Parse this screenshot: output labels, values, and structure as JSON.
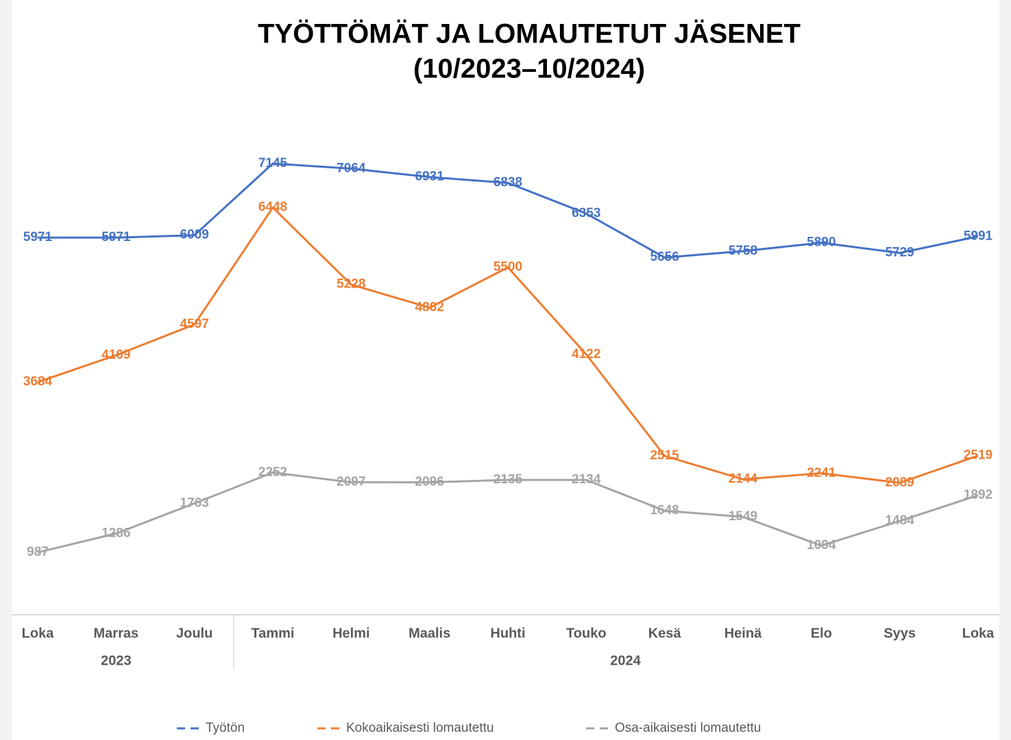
{
  "chart_data": {
    "type": "line",
    "title": [
      "TYÖTTÖMÄT JA LOMAUTETUT JÄSENET",
      "(10/2023–10/2024)"
    ],
    "categories": [
      "Loka",
      "Marras",
      "Joulu",
      "Tammi",
      "Helmi",
      "Maalis",
      "Huhti",
      "Touko",
      "Kesä",
      "Heinä",
      "Elo",
      "Syys",
      "Loka"
    ],
    "category_years": [
      "2023",
      "2023",
      "2023",
      "2024",
      "2024",
      "2024",
      "2024",
      "2024",
      "2024",
      "2024",
      "2024",
      "2024",
      "2024"
    ],
    "ylim": [
      0,
      8000
    ],
    "legend": "bottom",
    "series": [
      {
        "name": "Työtön",
        "color": "#4472c4",
        "values": [
          5971,
          5971,
          6009,
          7145,
          7064,
          6931,
          6838,
          6353,
          5656,
          5758,
          5890,
          5729,
          5991
        ]
      },
      {
        "name": "Kokoaikaisesti lomautettu",
        "color": "#ed7d31",
        "values": [
          3684,
          4109,
          4597,
          6448,
          5228,
          4862,
          5500,
          4122,
          2515,
          2144,
          2241,
          2089,
          2519
        ]
      },
      {
        "name": "Osa-aikaisesti lomautettu",
        "color": "#a5a5a5",
        "values": [
          987,
          1286,
          1763,
          2252,
          2097,
          2096,
          2135,
          2134,
          1648,
          1549,
          1094,
          1484,
          1892
        ]
      }
    ]
  }
}
